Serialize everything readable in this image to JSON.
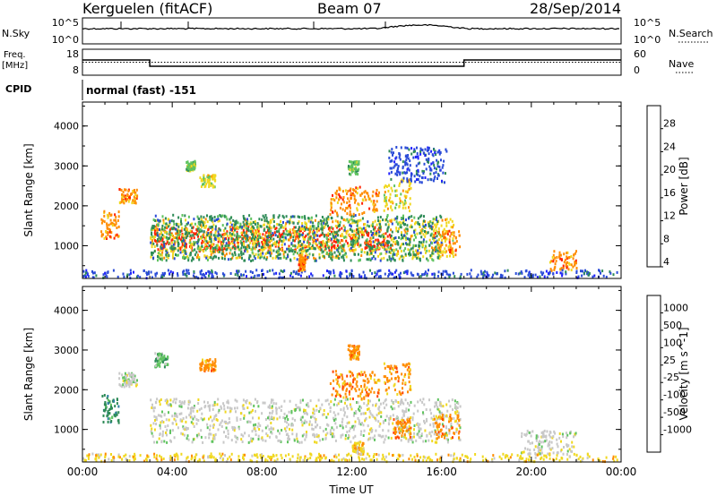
{
  "header": {
    "station": "Kerguelen (fitACF)",
    "beam": "Beam 07",
    "date": "28/Sep/2014"
  },
  "summary_panels": {
    "nsky_label": "N.Sky",
    "nsky_ticks": [
      "10^5",
      "10^0"
    ],
    "nsearch_label": "N.Search",
    "nsearch_ticks": [
      "10^5",
      "10^0"
    ],
    "freq_label_1": "Freq.",
    "freq_label_2": "[MHz]",
    "freq_ticks": [
      "18",
      "8"
    ],
    "nave_label": "Nave",
    "nave_ticks": [
      "60",
      "0"
    ],
    "cpid_label": "CPID",
    "cpid_text": "normal (fast) -151",
    "freq_series": {
      "x": [
        0,
        3,
        3,
        17,
        17,
        24
      ],
      "y": [
        14.5,
        14.5,
        11,
        11,
        14.5,
        14.5
      ]
    },
    "nave_series": {
      "x": [
        0,
        24
      ],
      "y": [
        30,
        30
      ]
    }
  },
  "chart_data": [
    {
      "type": "heatmap",
      "title": "Power",
      "ylabel": "Slant Range [km]",
      "xlabel": "Time UT",
      "xlim": [
        0,
        24
      ],
      "ylim": [
        180,
        4600
      ],
      "x_ticks": [
        "00:00",
        "04:00",
        "08:00",
        "12:00",
        "16:00",
        "20:00",
        "00:00"
      ],
      "y_ticks": [
        "1000",
        "2000",
        "3000",
        "4000"
      ],
      "colorbar_label": "Power [dB]",
      "colorbar_ticks": [
        "28",
        "24",
        "20",
        "16",
        "12",
        "8",
        "4"
      ],
      "colorscale": [
        "#1f1fff",
        "#2a4bd7",
        "#2e8b57",
        "#5fc35f",
        "#f0d820",
        "#ff8c00",
        "#ff2200"
      ],
      "regions": [
        {
          "t0": 3.1,
          "t1": 13.8,
          "r0": 900,
          "r1": 1500,
          "level": 6
        },
        {
          "t0": 3.0,
          "t1": 16.5,
          "r0": 700,
          "r1": 1700,
          "level": 4
        },
        {
          "t0": 3.0,
          "t1": 16.0,
          "r0": 650,
          "r1": 1800,
          "level": 2
        },
        {
          "t0": 0.8,
          "t1": 1.6,
          "r0": 1200,
          "r1": 1900,
          "level": 5
        },
        {
          "t0": 1.6,
          "t1": 2.4,
          "r0": 2100,
          "r1": 2450,
          "level": 5
        },
        {
          "t0": 11.0,
          "t1": 13.2,
          "r0": 1800,
          "r1": 2500,
          "level": 5
        },
        {
          "t0": 13.4,
          "t1": 14.6,
          "r0": 1900,
          "r1": 2700,
          "level": 4
        },
        {
          "t0": 15.6,
          "t1": 16.8,
          "r0": 800,
          "r1": 1400,
          "level": 5
        },
        {
          "t0": 20.8,
          "t1": 22.0,
          "r0": 400,
          "r1": 900,
          "level": 5
        },
        {
          "t0": 0.0,
          "t1": 24.0,
          "r0": 220,
          "r1": 420,
          "level": 1
        },
        {
          "t0": 5.2,
          "t1": 5.9,
          "r0": 2500,
          "r1": 2800,
          "level": 4
        },
        {
          "t0": 4.6,
          "t1": 5.0,
          "r0": 2900,
          "r1": 3150,
          "level": 3
        },
        {
          "t0": 11.8,
          "t1": 12.3,
          "r0": 2800,
          "r1": 3150,
          "level": 3
        },
        {
          "t0": 13.6,
          "t1": 16.2,
          "r0": 2600,
          "r1": 3500,
          "level": 1
        },
        {
          "t0": 9.6,
          "t1": 9.9,
          "r0": 400,
          "r1": 800,
          "level": 5
        }
      ]
    },
    {
      "type": "heatmap",
      "title": "Velocity",
      "ylabel": "Slant Range [km]",
      "xlabel": "Time UT",
      "xlim": [
        0,
        24
      ],
      "ylim": [
        180,
        4600
      ],
      "x_ticks": [
        "00:00",
        "04:00",
        "08:00",
        "12:00",
        "16:00",
        "20:00",
        "00:00"
      ],
      "y_ticks": [
        "1000",
        "2000",
        "3000",
        "4000"
      ],
      "colorbar_label": "Velocity [m s^-1]",
      "colorbar_ticks": [
        "1000",
        "500",
        "100",
        "25",
        "-25",
        "-100",
        "-500",
        "-1000"
      ],
      "colorscale": [
        "#1f3fbf",
        "#2e7fa0",
        "#2e8b57",
        "#5fc35f",
        "#c8c8c8",
        "#f0d820",
        "#ff8c00",
        "#ff4400",
        "#ff1a1a"
      ],
      "regions": [
        {
          "t0": 3.0,
          "t1": 16.8,
          "r0": 700,
          "r1": 1800,
          "level": 4
        },
        {
          "t0": 1.6,
          "t1": 2.4,
          "r0": 2100,
          "r1": 2450,
          "level": 4
        },
        {
          "t0": 0.8,
          "t1": 1.6,
          "r0": 1200,
          "r1": 1900,
          "level": 2
        },
        {
          "t0": 11.0,
          "t1": 13.2,
          "r0": 1800,
          "r1": 2500,
          "level": 6
        },
        {
          "t0": 13.4,
          "t1": 14.6,
          "r0": 1900,
          "r1": 2700,
          "level": 6
        },
        {
          "t0": 13.8,
          "t1": 14.6,
          "r0": 800,
          "r1": 1300,
          "level": 6
        },
        {
          "t0": 15.6,
          "t1": 16.8,
          "r0": 800,
          "r1": 1400,
          "level": 6
        },
        {
          "t0": 19.5,
          "t1": 22.0,
          "r0": 400,
          "r1": 1000,
          "level": 4
        },
        {
          "t0": 0.0,
          "t1": 24.0,
          "r0": 220,
          "r1": 420,
          "level": 5
        },
        {
          "t0": 12.0,
          "t1": 12.5,
          "r0": 400,
          "r1": 700,
          "level": 5
        },
        {
          "t0": 5.2,
          "t1": 5.9,
          "r0": 2500,
          "r1": 2800,
          "level": 6
        },
        {
          "t0": 11.8,
          "t1": 12.3,
          "r0": 2800,
          "r1": 3150,
          "level": 6
        },
        {
          "t0": 3.2,
          "t1": 3.8,
          "r0": 2600,
          "r1": 2950,
          "level": 3
        }
      ]
    }
  ]
}
